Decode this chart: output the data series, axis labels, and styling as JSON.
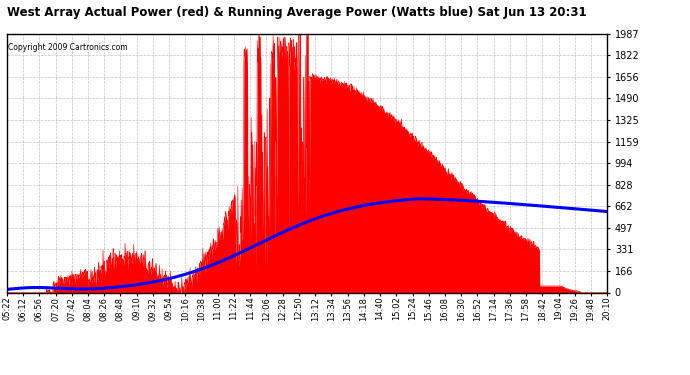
{
  "title": "West Array Actual Power (red) & Running Average Power (Watts blue) Sat Jun 13 20:31",
  "copyright": "Copyright 2009 Cartronics.com",
  "ymax": 1987.4,
  "ymin": 0.0,
  "yticks": [
    0.0,
    165.6,
    331.2,
    496.8,
    662.5,
    828.1,
    993.7,
    1159.3,
    1324.9,
    1490.5,
    1656.2,
    1821.8,
    1987.4
  ],
  "xtick_labels": [
    "05:22",
    "06:12",
    "06:56",
    "07:20",
    "07:42",
    "08:04",
    "08:26",
    "08:48",
    "09:10",
    "09:32",
    "09:54",
    "10:16",
    "10:38",
    "11:00",
    "11:22",
    "11:44",
    "12:06",
    "12:28",
    "12:50",
    "13:12",
    "13:34",
    "13:56",
    "14:18",
    "14:40",
    "15:02",
    "15:24",
    "15:46",
    "16:08",
    "16:30",
    "16:52",
    "17:14",
    "17:36",
    "17:58",
    "18:42",
    "19:04",
    "19:26",
    "19:48",
    "20:10"
  ],
  "background_color": "#ffffff",
  "plot_background": "#ffffff",
  "red_color": "#ff0000",
  "blue_color": "#0000ff",
  "grid_color": "#aaaaaa"
}
